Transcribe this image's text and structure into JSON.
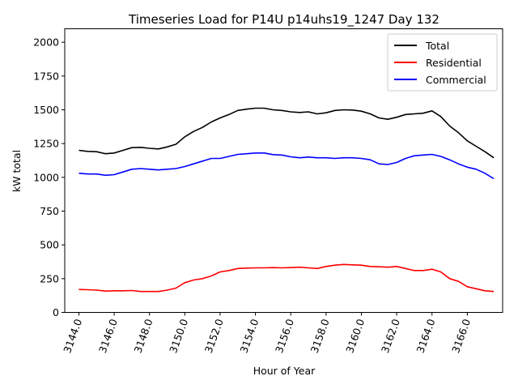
{
  "chart_data": {
    "type": "line",
    "title": "Timeseries Load for P14U p14uhs19_1247  Day 132",
    "xlabel": "Hour of Year",
    "ylabel": "kW total",
    "xlim": [
      3143.2,
      3168.0
    ],
    "ylim": [
      0,
      2100
    ],
    "x_ticks": [
      3144,
      3146,
      3148,
      3150,
      3152,
      3154,
      3156,
      3158,
      3160,
      3162,
      3164,
      3166
    ],
    "x_tick_labels": [
      "3144.0",
      "3146.0",
      "3148.0",
      "3150.0",
      "3152.0",
      "3154.0",
      "3156.0",
      "3158.0",
      "3160.0",
      "3162.0",
      "3164.0",
      "3166.0"
    ],
    "y_ticks": [
      0,
      250,
      500,
      750,
      1000,
      1250,
      1500,
      1750,
      2000
    ],
    "y_tick_labels": [
      "0",
      "250",
      "500",
      "750",
      "1000",
      "1250",
      "1500",
      "1750",
      "2000"
    ],
    "legend_position": "top-right",
    "x": [
      3144.0,
      3144.5,
      3145.0,
      3145.5,
      3146.0,
      3146.5,
      3147.0,
      3147.5,
      3148.0,
      3148.5,
      3149.0,
      3149.5,
      3150.0,
      3150.5,
      3151.0,
      3151.5,
      3152.0,
      3152.5,
      3153.0,
      3153.5,
      3154.0,
      3154.5,
      3155.0,
      3155.5,
      3156.0,
      3156.5,
      3157.0,
      3157.5,
      3158.0,
      3158.5,
      3159.0,
      3159.5,
      3160.0,
      3160.5,
      3161.0,
      3161.5,
      3162.0,
      3162.5,
      3163.0,
      3163.5,
      3164.0,
      3164.5,
      3165.0,
      3165.5,
      3166.0,
      3166.5,
      3167.0,
      3167.5
    ],
    "series": [
      {
        "name": "Total",
        "color": "#000000",
        "values": [
          1200,
          1192,
          1190,
          1175,
          1180,
          1200,
          1220,
          1222,
          1215,
          1210,
          1225,
          1245,
          1300,
          1340,
          1370,
          1410,
          1440,
          1465,
          1495,
          1505,
          1512,
          1512,
          1500,
          1495,
          1485,
          1480,
          1485,
          1470,
          1478,
          1495,
          1500,
          1498,
          1490,
          1470,
          1440,
          1430,
          1445,
          1465,
          1470,
          1475,
          1492,
          1450,
          1380,
          1330,
          1270,
          1230,
          1190,
          1145
        ]
      },
      {
        "name": "Residential",
        "color": "#ff0000",
        "values": [
          170,
          168,
          165,
          158,
          160,
          160,
          162,
          155,
          155,
          155,
          165,
          180,
          220,
          240,
          250,
          270,
          300,
          310,
          325,
          328,
          330,
          330,
          332,
          330,
          332,
          335,
          330,
          325,
          340,
          350,
          355,
          352,
          350,
          340,
          338,
          335,
          340,
          325,
          310,
          310,
          320,
          300,
          250,
          230,
          190,
          175,
          160,
          155
        ]
      },
      {
        "name": "Commercial",
        "color": "#0000ff",
        "values": [
          1030,
          1025,
          1025,
          1015,
          1020,
          1040,
          1060,
          1065,
          1060,
          1055,
          1060,
          1065,
          1080,
          1100,
          1120,
          1140,
          1140,
          1155,
          1170,
          1175,
          1180,
          1180,
          1168,
          1165,
          1152,
          1145,
          1150,
          1145,
          1145,
          1140,
          1145,
          1145,
          1140,
          1130,
          1100,
          1095,
          1110,
          1140,
          1160,
          1165,
          1170,
          1155,
          1130,
          1100,
          1075,
          1060,
          1030,
          990
        ]
      }
    ]
  }
}
